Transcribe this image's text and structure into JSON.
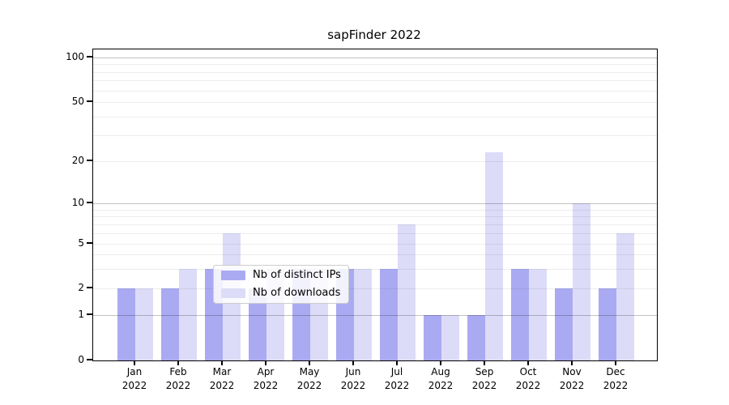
{
  "figure": {
    "title": "sapFinder 2022"
  },
  "colors": {
    "ips": "#aaaaf2",
    "downloads": "#dcdcf8",
    "grid_major": "rgba(0,0,0,0.24)",
    "grid_minor": "rgba(0,0,0,0.07)",
    "axis": "#000000",
    "text": "#000000",
    "legend_border": "#cccccc"
  },
  "legend": {
    "items": [
      {
        "series": "ips",
        "label": "Nb of distinct IPs"
      },
      {
        "series": "downloads",
        "label": "Nb of downloads"
      }
    ]
  },
  "chart_data": {
    "type": "bar",
    "title": "sapFinder 2022",
    "categories": [
      "Jan 2022",
      "Feb 2022",
      "Mar 2022",
      "Apr 2022",
      "May 2022",
      "Jun 2022",
      "Jul 2022",
      "Aug 2022",
      "Sep 2022",
      "Oct 2022",
      "Nov 2022",
      "Dec 2022"
    ],
    "series": [
      {
        "name": "Nb of distinct IPs",
        "color_key": "ips",
        "values": [
          2,
          2,
          3,
          2,
          3,
          3,
          3,
          1,
          1,
          3,
          2,
          2
        ]
      },
      {
        "name": "Nb of downloads",
        "color_key": "downloads",
        "values": [
          2,
          3,
          6,
          3,
          3,
          3,
          7,
          1,
          23,
          3,
          10,
          6
        ]
      }
    ],
    "xlabel": "",
    "ylabel": "",
    "yticks": [
      0,
      1,
      2,
      5,
      10,
      20,
      50,
      100
    ],
    "ylim": [
      0,
      130
    ],
    "yscale": "logarithmic (with 0 baseline shown)",
    "grid": "horizontal minor + major; decades 1,10,100 darker",
    "legend_position": "lower center inside plot"
  }
}
